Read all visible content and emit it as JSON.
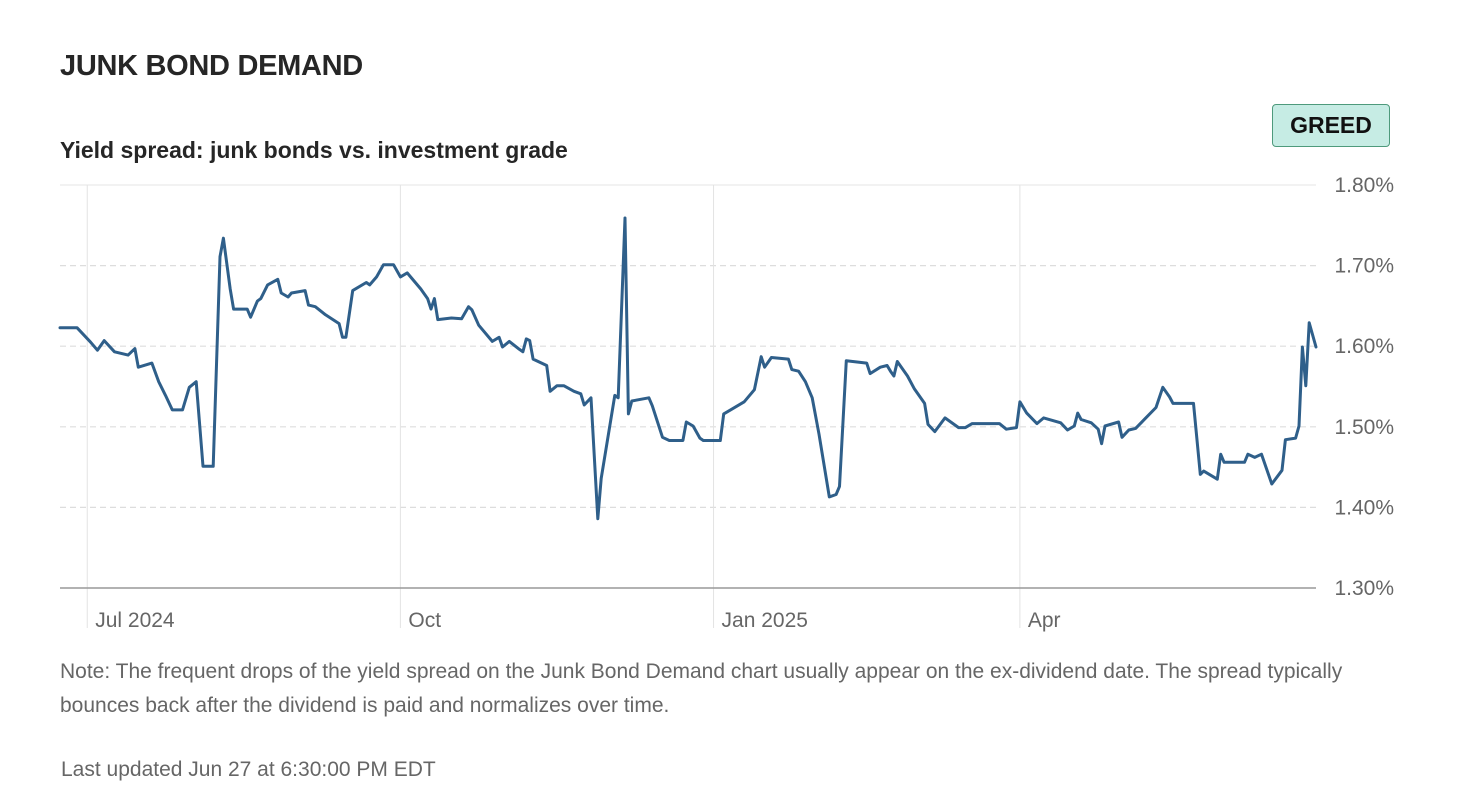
{
  "header": {
    "title": "JUNK BOND DEMAND",
    "subtitle": "Yield spread: junk bonds vs. investment grade",
    "badge": "GREED",
    "badge_color": "#c6ece4"
  },
  "colors": {
    "line": "#2f5f8a",
    "axis": "#999999",
    "grid": "#dddddd"
  },
  "chart_data": {
    "type": "line",
    "title": "",
    "xlabel": "",
    "ylabel": "",
    "ylim": [
      1.3,
      1.8
    ],
    "yticks": [
      "1.80%",
      "1.70%",
      "1.60%",
      "1.50%",
      "1.40%",
      "1.30%"
    ],
    "xticks": [
      {
        "label": "Jul 2024",
        "date": "2024-07-01"
      },
      {
        "label": "Oct",
        "date": "2024-10-01"
      },
      {
        "label": "Jan 2025",
        "date": "2025-01-01"
      },
      {
        "label": "Apr",
        "date": "2025-04-01"
      }
    ],
    "xlim": [
      "2024-06-23",
      "2025-06-27"
    ],
    "grid": true,
    "series": [
      {
        "values": [
          [
            "2024-06-23",
            1.623
          ],
          [
            "2024-06-28",
            1.623
          ],
          [
            "2024-07-02",
            1.605
          ],
          [
            "2024-07-04",
            1.595
          ],
          [
            "2024-07-06",
            1.607
          ],
          [
            "2024-07-09",
            1.593
          ],
          [
            "2024-07-13",
            1.589
          ],
          [
            "2024-07-15",
            1.597
          ],
          [
            "2024-07-16",
            1.574
          ],
          [
            "2024-07-20",
            1.579
          ],
          [
            "2024-07-22",
            1.556
          ],
          [
            "2024-07-24",
            1.539
          ],
          [
            "2024-07-26",
            1.521
          ],
          [
            "2024-07-29",
            1.521
          ],
          [
            "2024-07-31",
            1.549
          ],
          [
            "2024-08-02",
            1.556
          ],
          [
            "2024-08-04",
            1.451
          ],
          [
            "2024-08-07",
            1.451
          ],
          [
            "2024-08-09",
            1.711
          ],
          [
            "2024-08-10",
            1.734
          ],
          [
            "2024-08-12",
            1.671
          ],
          [
            "2024-08-13",
            1.646
          ],
          [
            "2024-08-17",
            1.646
          ],
          [
            "2024-08-18",
            1.636
          ],
          [
            "2024-08-20",
            1.656
          ],
          [
            "2024-08-21",
            1.659
          ],
          [
            "2024-08-23",
            1.676
          ],
          [
            "2024-08-26",
            1.683
          ],
          [
            "2024-08-27",
            1.666
          ],
          [
            "2024-08-29",
            1.661
          ],
          [
            "2024-08-30",
            1.666
          ],
          [
            "2024-09-03",
            1.669
          ],
          [
            "2024-09-04",
            1.651
          ],
          [
            "2024-09-06",
            1.649
          ],
          [
            "2024-09-09",
            1.639
          ],
          [
            "2024-09-13",
            1.628
          ],
          [
            "2024-09-14",
            1.611
          ],
          [
            "2024-09-15",
            1.611
          ],
          [
            "2024-09-17",
            1.669
          ],
          [
            "2024-09-21",
            1.679
          ],
          [
            "2024-09-22",
            1.676
          ],
          [
            "2024-09-24",
            1.686
          ],
          [
            "2024-09-26",
            1.701
          ],
          [
            "2024-09-29",
            1.701
          ],
          [
            "2024-10-01",
            1.686
          ],
          [
            "2024-10-03",
            1.691
          ],
          [
            "2024-10-07",
            1.671
          ],
          [
            "2024-10-09",
            1.659
          ],
          [
            "2024-10-10",
            1.646
          ],
          [
            "2024-10-11",
            1.659
          ],
          [
            "2024-10-12",
            1.633
          ],
          [
            "2024-10-16",
            1.635
          ],
          [
            "2024-10-19",
            1.634
          ],
          [
            "2024-10-21",
            1.649
          ],
          [
            "2024-10-22",
            1.645
          ],
          [
            "2024-10-24",
            1.626
          ],
          [
            "2024-10-28",
            1.606
          ],
          [
            "2024-10-30",
            1.611
          ],
          [
            "2024-10-31",
            1.599
          ],
          [
            "2024-11-02",
            1.606
          ],
          [
            "2024-11-05",
            1.596
          ],
          [
            "2024-11-06",
            1.593
          ],
          [
            "2024-11-07",
            1.609
          ],
          [
            "2024-11-08",
            1.607
          ],
          [
            "2024-11-09",
            1.584
          ],
          [
            "2024-11-13",
            1.576
          ],
          [
            "2024-11-14",
            1.544
          ],
          [
            "2024-11-16",
            1.551
          ],
          [
            "2024-11-18",
            1.551
          ],
          [
            "2024-11-21",
            1.544
          ],
          [
            "2024-11-23",
            1.541
          ],
          [
            "2024-11-24",
            1.527
          ],
          [
            "2024-11-26",
            1.536
          ],
          [
            "2024-11-28",
            1.386
          ],
          [
            "2024-11-29",
            1.436
          ],
          [
            "2024-12-03",
            1.539
          ],
          [
            "2024-12-04",
            1.536
          ],
          [
            "2024-12-06",
            1.759
          ],
          [
            "2024-12-07",
            1.516
          ],
          [
            "2024-12-08",
            1.532
          ],
          [
            "2024-12-13",
            1.536
          ],
          [
            "2024-12-14",
            1.526
          ],
          [
            "2024-12-17",
            1.487
          ],
          [
            "2024-12-19",
            1.483
          ],
          [
            "2024-12-23",
            1.483
          ],
          [
            "2024-12-24",
            1.506
          ],
          [
            "2024-12-26",
            1.501
          ],
          [
            "2024-12-28",
            1.486
          ],
          [
            "2024-12-29",
            1.483
          ],
          [
            "2025-01-03",
            1.483
          ],
          [
            "2025-01-04",
            1.516
          ],
          [
            "2025-01-06",
            1.521
          ],
          [
            "2025-01-10",
            1.531
          ],
          [
            "2025-01-13",
            1.546
          ],
          [
            "2025-01-15",
            1.587
          ],
          [
            "2025-01-16",
            1.574
          ],
          [
            "2025-01-18",
            1.586
          ],
          [
            "2025-01-23",
            1.584
          ],
          [
            "2025-01-24",
            1.571
          ],
          [
            "2025-01-26",
            1.569
          ],
          [
            "2025-01-28",
            1.556
          ],
          [
            "2025-01-30",
            1.536
          ],
          [
            "2025-02-01",
            1.491
          ],
          [
            "2025-02-04",
            1.413
          ],
          [
            "2025-02-06",
            1.416
          ],
          [
            "2025-02-07",
            1.426
          ],
          [
            "2025-02-09",
            1.582
          ],
          [
            "2025-02-15",
            1.579
          ],
          [
            "2025-02-16",
            1.566
          ],
          [
            "2025-02-19",
            1.574
          ],
          [
            "2025-02-21",
            1.576
          ],
          [
            "2025-02-22",
            1.569
          ],
          [
            "2025-02-23",
            1.563
          ],
          [
            "2025-02-24",
            1.581
          ],
          [
            "2025-02-27",
            1.563
          ],
          [
            "2025-03-01",
            1.547
          ],
          [
            "2025-03-04",
            1.529
          ],
          [
            "2025-03-05",
            1.503
          ],
          [
            "2025-03-07",
            1.494
          ],
          [
            "2025-03-10",
            1.511
          ],
          [
            "2025-03-14",
            1.499
          ],
          [
            "2025-03-16",
            1.499
          ],
          [
            "2025-03-18",
            1.504
          ],
          [
            "2025-03-26",
            1.504
          ],
          [
            "2025-03-28",
            1.497
          ],
          [
            "2025-03-31",
            1.499
          ],
          [
            "2025-04-01",
            1.531
          ],
          [
            "2025-04-03",
            1.517
          ],
          [
            "2025-04-06",
            1.504
          ],
          [
            "2025-04-08",
            1.511
          ],
          [
            "2025-04-13",
            1.505
          ],
          [
            "2025-04-15",
            1.496
          ],
          [
            "2025-04-17",
            1.501
          ],
          [
            "2025-04-18",
            1.517
          ],
          [
            "2025-04-19",
            1.509
          ],
          [
            "2025-04-22",
            1.505
          ],
          [
            "2025-04-24",
            1.497
          ],
          [
            "2025-04-25",
            1.479
          ],
          [
            "2025-04-26",
            1.501
          ],
          [
            "2025-04-30",
            1.506
          ],
          [
            "2025-05-01",
            1.487
          ],
          [
            "2025-05-03",
            1.496
          ],
          [
            "2025-05-05",
            1.498
          ],
          [
            "2025-05-11",
            1.524
          ],
          [
            "2025-05-13",
            1.549
          ],
          [
            "2025-05-15",
            1.537
          ],
          [
            "2025-05-16",
            1.529
          ],
          [
            "2025-05-22",
            1.529
          ],
          [
            "2025-05-24",
            1.441
          ],
          [
            "2025-05-25",
            1.445
          ],
          [
            "2025-05-29",
            1.435
          ],
          [
            "2025-05-30",
            1.466
          ],
          [
            "2025-05-31",
            1.456
          ],
          [
            "2025-06-06",
            1.456
          ],
          [
            "2025-06-07",
            1.466
          ],
          [
            "2025-06-09",
            1.462
          ],
          [
            "2025-06-11",
            1.466
          ],
          [
            "2025-06-14",
            1.429
          ],
          [
            "2025-06-17",
            1.446
          ],
          [
            "2025-06-18",
            1.484
          ],
          [
            "2025-06-21",
            1.486
          ],
          [
            "2025-06-22",
            1.501
          ],
          [
            "2025-06-23",
            1.599
          ],
          [
            "2025-06-24",
            1.551
          ],
          [
            "2025-06-25",
            1.629
          ],
          [
            "2025-06-27",
            1.599
          ]
        ]
      }
    ]
  },
  "note": "Note: The frequent drops of the yield spread on the Junk Bond Demand chart usually appear on the ex-dividend date. The spread typically bounces back after the dividend is paid and normalizes over time.",
  "last_updated": "Last updated Jun 27 at 6:30:00 PM EDT"
}
